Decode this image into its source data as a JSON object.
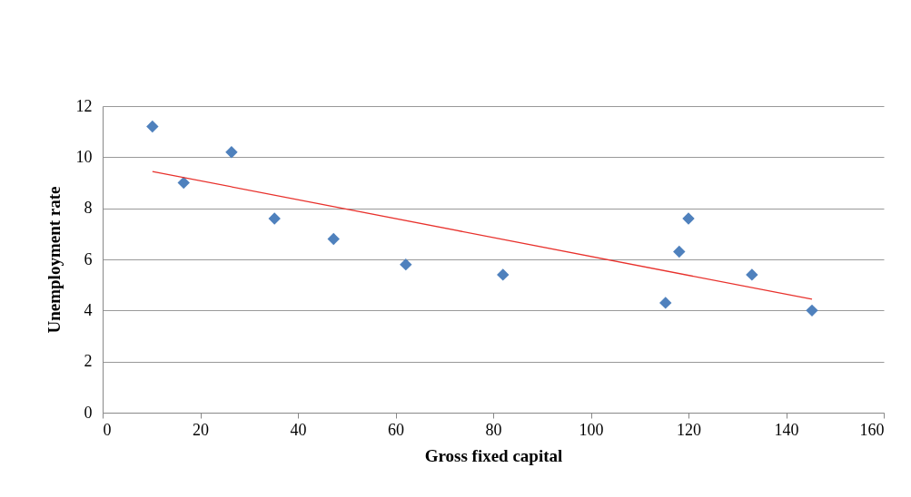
{
  "chart_data": {
    "type": "scatter",
    "xlabel": "Gross fixed capital",
    "ylabel": "Unemployment rate",
    "xlim": [
      0,
      160
    ],
    "xticks": [
      0,
      20,
      40,
      60,
      80,
      100,
      120,
      140,
      160
    ],
    "ylim": [
      0,
      12
    ],
    "yticks": [
      0,
      2,
      4,
      6,
      8,
      10,
      12
    ],
    "grid": "y",
    "series": [
      {
        "color": "#4f81bd",
        "marker": "diamond",
        "x": [
          10.2,
          16.6,
          26.4,
          35.2,
          47.3,
          62.1,
          82.0,
          115.3,
          118.1,
          120.0,
          133.0,
          145.3
        ],
        "values": [
          11.2,
          9.0,
          10.2,
          7.6,
          6.8,
          5.8,
          5.4,
          4.3,
          6.3,
          7.6,
          5.4,
          4.0
        ]
      },
      {
        "type": "line",
        "color": "#e8312c",
        "marker": "none",
        "x": [
          10.2,
          145.3
        ],
        "values": [
          9.44,
          4.44
        ]
      }
    ]
  }
}
